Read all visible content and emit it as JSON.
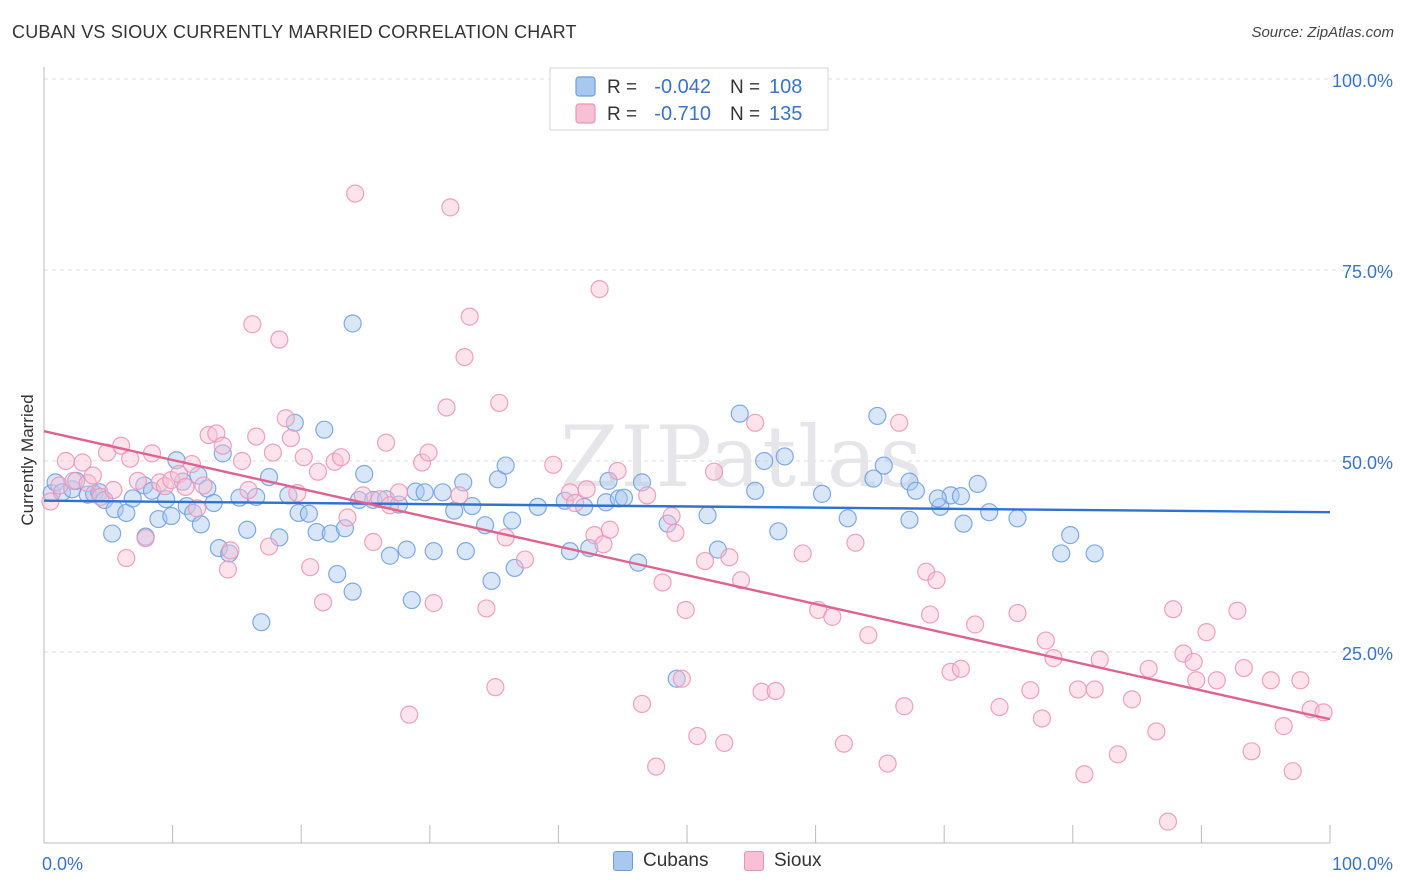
{
  "title": "CUBAN VS SIOUX CURRENTLY MARRIED CORRELATION CHART",
  "source": "Source: ZipAtlas.com",
  "watermark": "ZIPatlas",
  "chart_data": {
    "type": "scatter",
    "ylabel": "Currently Married",
    "xlim": [
      0,
      100
    ],
    "ylim": [
      0,
      100
    ],
    "x_tick_labels": [
      "0.0%",
      "100.0%"
    ],
    "y_tick_labels": [
      "100.0%",
      "75.0%",
      "50.0%",
      "25.0%"
    ],
    "y_ticks": [
      100,
      75,
      50,
      25
    ],
    "grid": true,
    "legend_position": "top-center",
    "stats": [
      {
        "r_label": "R =",
        "r_value": "-0.042",
        "n_label": "N =",
        "n_value": "108"
      },
      {
        "r_label": "R =",
        "r_value": "-0.710",
        "n_label": "N =",
        "n_value": "135"
      }
    ],
    "series": [
      {
        "name": "Cubans",
        "color": "#6a9de0",
        "fill": "#a9c8f0",
        "line_color": "#2f72d0",
        "trend": [
          [
            0,
            44.8
          ],
          [
            100,
            43.3
          ]
        ],
        "points": [
          [
            0.6,
            45.8
          ],
          [
            0.9,
            47.2
          ],
          [
            1.4,
            45.9
          ],
          [
            2.2,
            46.3
          ],
          [
            2.5,
            47.4
          ],
          [
            3.4,
            45.6
          ],
          [
            3.9,
            45.7
          ],
          [
            4.3,
            45.9
          ],
          [
            4.7,
            44.9
          ],
          [
            5.5,
            43.7
          ],
          [
            5.3,
            40.5
          ],
          [
            6.4,
            43.2
          ],
          [
            6.9,
            45.1
          ],
          [
            7.8,
            46.8
          ],
          [
            7.9,
            40.1
          ],
          [
            8.4,
            46.1
          ],
          [
            8.9,
            42.4
          ],
          [
            9.5,
            45.0
          ],
          [
            9.9,
            42.8
          ],
          [
            10.3,
            50.1
          ],
          [
            10.8,
            47.3
          ],
          [
            11.1,
            44.1
          ],
          [
            11.6,
            43.2
          ],
          [
            12.0,
            48.1
          ],
          [
            12.2,
            41.7
          ],
          [
            12.7,
            46.4
          ],
          [
            13.2,
            44.5
          ],
          [
            13.6,
            38.6
          ],
          [
            13.9,
            51.0
          ],
          [
            14.4,
            37.9
          ],
          [
            15.2,
            45.2
          ],
          [
            15.8,
            41.0
          ],
          [
            16.5,
            45.3
          ],
          [
            16.9,
            28.9
          ],
          [
            17.5,
            47.9
          ],
          [
            18.3,
            40.0
          ],
          [
            19.0,
            45.5
          ],
          [
            19.5,
            55.0
          ],
          [
            19.8,
            43.2
          ],
          [
            20.6,
            43.1
          ],
          [
            21.2,
            40.7
          ],
          [
            21.8,
            54.1
          ],
          [
            22.3,
            40.5
          ],
          [
            22.8,
            35.2
          ],
          [
            23.4,
            41.2
          ],
          [
            24.0,
            32.9
          ],
          [
            24.5,
            44.9
          ],
          [
            24.0,
            68.0
          ],
          [
            24.9,
            48.3
          ],
          [
            25.6,
            44.9
          ],
          [
            26.6,
            45.0
          ],
          [
            26.9,
            37.6
          ],
          [
            27.6,
            44.3
          ],
          [
            28.2,
            38.4
          ],
          [
            28.6,
            31.8
          ],
          [
            28.9,
            46.0
          ],
          [
            29.6,
            45.9
          ],
          [
            30.3,
            38.2
          ],
          [
            31.0,
            45.9
          ],
          [
            31.9,
            43.5
          ],
          [
            32.6,
            47.2
          ],
          [
            32.8,
            38.2
          ],
          [
            33.3,
            44.1
          ],
          [
            34.3,
            41.6
          ],
          [
            34.8,
            34.3
          ],
          [
            35.3,
            47.6
          ],
          [
            35.9,
            49.4
          ],
          [
            36.4,
            42.2
          ],
          [
            36.6,
            36.0
          ],
          [
            38.4,
            44.0
          ],
          [
            40.5,
            44.8
          ],
          [
            40.9,
            38.2
          ],
          [
            42.0,
            44.0
          ],
          [
            42.4,
            38.6
          ],
          [
            43.7,
            44.6
          ],
          [
            43.9,
            47.4
          ],
          [
            44.7,
            45.1
          ],
          [
            45.1,
            45.2
          ],
          [
            46.2,
            36.7
          ],
          [
            46.5,
            47.2
          ],
          [
            48.5,
            41.8
          ],
          [
            49.2,
            21.5
          ],
          [
            51.6,
            42.9
          ],
          [
            52.4,
            38.4
          ],
          [
            54.1,
            56.2
          ],
          [
            55.3,
            46.1
          ],
          [
            56.0,
            50.0
          ],
          [
            57.1,
            40.8
          ],
          [
            57.6,
            50.6
          ],
          [
            60.5,
            45.7
          ],
          [
            62.5,
            42.5
          ],
          [
            64.5,
            47.7
          ],
          [
            64.8,
            55.9
          ],
          [
            65.3,
            49.4
          ],
          [
            67.3,
            47.3
          ],
          [
            67.3,
            42.3
          ],
          [
            67.8,
            46.1
          ],
          [
            69.7,
            44.0
          ],
          [
            70.5,
            45.5
          ],
          [
            71.3,
            45.4
          ],
          [
            71.5,
            41.8
          ],
          [
            72.6,
            47.0
          ],
          [
            73.5,
            43.3
          ],
          [
            75.7,
            42.5
          ],
          [
            79.1,
            37.9
          ],
          [
            79.8,
            40.3
          ],
          [
            81.7,
            37.9
          ],
          [
            69.5,
            45.1
          ]
        ]
      },
      {
        "name": "Sioux",
        "color": "#ee92b4",
        "fill": "#f8c0d4",
        "line_color": "#e0638f",
        "trend": [
          [
            0,
            53.9
          ],
          [
            100,
            16.2
          ]
        ],
        "points": [
          [
            0.5,
            44.7
          ],
          [
            1.2,
            46.8
          ],
          [
            1.7,
            50.0
          ],
          [
            2.3,
            47.4
          ],
          [
            3.0,
            49.8
          ],
          [
            3.4,
            47.1
          ],
          [
            3.8,
            48.1
          ],
          [
            4.4,
            45.3
          ],
          [
            4.9,
            51.1
          ],
          [
            5.4,
            46.2
          ],
          [
            6.0,
            52.0
          ],
          [
            6.4,
            37.3
          ],
          [
            6.7,
            50.3
          ],
          [
            7.3,
            47.4
          ],
          [
            7.9,
            39.9
          ],
          [
            8.4,
            51.0
          ],
          [
            9.0,
            47.2
          ],
          [
            9.4,
            46.7
          ],
          [
            9.9,
            47.5
          ],
          [
            10.5,
            48.3
          ],
          [
            11.0,
            46.6
          ],
          [
            11.5,
            49.6
          ],
          [
            11.9,
            43.8
          ],
          [
            12.4,
            46.8
          ],
          [
            12.8,
            53.4
          ],
          [
            13.4,
            53.6
          ],
          [
            13.9,
            52.0
          ],
          [
            14.3,
            35.8
          ],
          [
            14.5,
            38.3
          ],
          [
            15.4,
            50.0
          ],
          [
            15.9,
            46.2
          ],
          [
            16.2,
            67.9
          ],
          [
            16.5,
            53.2
          ],
          [
            17.5,
            38.8
          ],
          [
            17.8,
            51.1
          ],
          [
            18.3,
            65.9
          ],
          [
            18.8,
            55.6
          ],
          [
            19.2,
            53.0
          ],
          [
            19.7,
            45.8
          ],
          [
            20.2,
            50.5
          ],
          [
            20.7,
            36.1
          ],
          [
            21.3,
            48.6
          ],
          [
            21.7,
            31.5
          ],
          [
            22.6,
            49.9
          ],
          [
            23.1,
            50.5
          ],
          [
            23.6,
            42.6
          ],
          [
            24.2,
            85.0
          ],
          [
            24.8,
            45.5
          ],
          [
            25.6,
            39.4
          ],
          [
            26.1,
            45.0
          ],
          [
            26.6,
            52.4
          ],
          [
            26.9,
            44.2
          ],
          [
            27.6,
            45.9
          ],
          [
            28.4,
            16.8
          ],
          [
            29.4,
            49.8
          ],
          [
            29.9,
            51.1
          ],
          [
            30.3,
            31.4
          ],
          [
            31.3,
            57.0
          ],
          [
            31.6,
            83.2
          ],
          [
            32.3,
            45.5
          ],
          [
            32.7,
            63.6
          ],
          [
            33.1,
            68.9
          ],
          [
            34.4,
            30.7
          ],
          [
            35.1,
            20.4
          ],
          [
            35.4,
            57.6
          ],
          [
            35.9,
            40.0
          ],
          [
            37.4,
            37.1
          ],
          [
            39.6,
            49.5
          ],
          [
            40.9,
            45.9
          ],
          [
            41.3,
            44.5
          ],
          [
            42.2,
            46.3
          ],
          [
            42.8,
            40.3
          ],
          [
            43.2,
            72.5
          ],
          [
            43.5,
            39.1
          ],
          [
            44.0,
            41.0
          ],
          [
            44.6,
            48.7
          ],
          [
            46.5,
            18.2
          ],
          [
            46.9,
            45.5
          ],
          [
            47.6,
            10.0
          ],
          [
            48.1,
            34.1
          ],
          [
            48.8,
            42.8
          ],
          [
            49.1,
            40.6
          ],
          [
            49.6,
            21.5
          ],
          [
            49.9,
            30.5
          ],
          [
            50.8,
            14.0
          ],
          [
            51.4,
            36.9
          ],
          [
            52.1,
            48.6
          ],
          [
            52.9,
            13.1
          ],
          [
            53.3,
            37.4
          ],
          [
            54.2,
            34.4
          ],
          [
            55.3,
            55.0
          ],
          [
            55.8,
            19.8
          ],
          [
            56.9,
            19.9
          ],
          [
            59.0,
            37.9
          ],
          [
            60.2,
            30.5
          ],
          [
            61.3,
            29.6
          ],
          [
            62.2,
            13.0
          ],
          [
            63.1,
            39.3
          ],
          [
            64.1,
            27.2
          ],
          [
            65.6,
            10.4
          ],
          [
            66.5,
            55.0
          ],
          [
            66.9,
            17.9
          ],
          [
            68.6,
            35.5
          ],
          [
            68.9,
            29.9
          ],
          [
            69.4,
            34.4
          ],
          [
            70.5,
            22.4
          ],
          [
            71.3,
            22.8
          ],
          [
            72.4,
            28.6
          ],
          [
            74.3,
            17.8
          ],
          [
            75.7,
            30.1
          ],
          [
            76.7,
            20.0
          ],
          [
            77.6,
            16.3
          ],
          [
            77.9,
            26.5
          ],
          [
            78.5,
            24.2
          ],
          [
            80.4,
            20.1
          ],
          [
            80.9,
            9.0
          ],
          [
            81.7,
            20.1
          ],
          [
            82.1,
            24.0
          ],
          [
            83.5,
            11.6
          ],
          [
            84.6,
            18.8
          ],
          [
            85.9,
            22.8
          ],
          [
            86.5,
            14.6
          ],
          [
            87.4,
            2.8
          ],
          [
            87.8,
            30.6
          ],
          [
            88.6,
            24.8
          ],
          [
            89.4,
            23.7
          ],
          [
            89.6,
            21.3
          ],
          [
            90.4,
            27.6
          ],
          [
            91.2,
            21.3
          ],
          [
            92.8,
            30.4
          ],
          [
            93.3,
            22.9
          ],
          [
            93.9,
            12.0
          ],
          [
            95.4,
            21.3
          ],
          [
            96.4,
            15.3
          ],
          [
            97.1,
            9.4
          ],
          [
            97.7,
            21.3
          ],
          [
            98.5,
            17.5
          ],
          [
            99.5,
            17.1
          ]
        ]
      }
    ]
  }
}
